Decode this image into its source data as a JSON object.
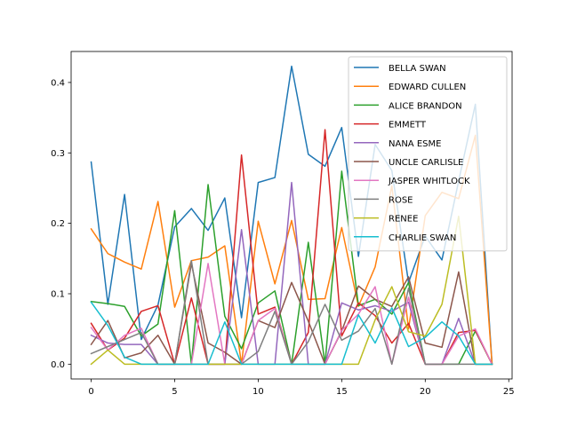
{
  "chart_data": {
    "type": "line",
    "title": "",
    "xlabel": "",
    "ylabel": "",
    "xlim": [
      -1.2,
      25.2
    ],
    "ylim": [
      -0.021,
      0.444
    ],
    "xticks": [
      0,
      5,
      10,
      15,
      20,
      25
    ],
    "xtick_labels": [
      "0",
      "5",
      "10",
      "15",
      "20",
      "25"
    ],
    "yticks": [
      0.0,
      0.1,
      0.2,
      0.3,
      0.4
    ],
    "ytick_labels": [
      "0.0",
      "0.1",
      "0.2",
      "0.3",
      "0.4"
    ],
    "grid": false,
    "legend_position": "upper right",
    "x": [
      0,
      1,
      2,
      3,
      4,
      5,
      6,
      7,
      8,
      9,
      10,
      11,
      12,
      13,
      14,
      15,
      16,
      17,
      18,
      19,
      20,
      21,
      22,
      23,
      24
    ],
    "series": [
      {
        "name": "BELLA SWAN",
        "color": "#1f77b4",
        "values": [
          0.287,
          0.085,
          0.241,
          0.035,
          0.084,
          0.195,
          0.221,
          0.19,
          0.236,
          0.066,
          0.258,
          0.265,
          0.423,
          0.298,
          0.281,
          0.336,
          0.153,
          0.312,
          0.275,
          0.116,
          0.182,
          0.148,
          0.26,
          0.369,
          0.0
        ]
      },
      {
        "name": "EDWARD CULLEN",
        "color": "#ff7f0e",
        "values": [
          0.192,
          0.157,
          0.145,
          0.135,
          0.231,
          0.081,
          0.147,
          0.152,
          0.168,
          0.0,
          0.203,
          0.114,
          0.204,
          0.092,
          0.093,
          0.194,
          0.082,
          0.138,
          0.253,
          0.05,
          0.211,
          0.244,
          0.235,
          0.325,
          0.0
        ]
      },
      {
        "name": "ALICE BRANDON",
        "color": "#2ca02c",
        "values": [
          0.089,
          0.086,
          0.082,
          0.04,
          0.057,
          0.218,
          0.0,
          0.255,
          0.068,
          0.022,
          0.087,
          0.104,
          0.0,
          0.173,
          0.0,
          0.274,
          0.083,
          0.092,
          0.071,
          0.116,
          0.0,
          0.0,
          0.0,
          0.047,
          0.0
        ]
      },
      {
        "name": "EMMETT",
        "color": "#d62728",
        "values": [
          0.058,
          0.02,
          0.037,
          0.075,
          0.083,
          0.0,
          0.094,
          0.0,
          0.0,
          0.297,
          0.071,
          0.081,
          0.0,
          0.045,
          0.333,
          0.04,
          0.087,
          0.069,
          0.03,
          0.058,
          0.0,
          0.0,
          0.045,
          0.048,
          0.0
        ]
      },
      {
        "name": "NANA ESME",
        "color": "#9467bd",
        "values": [
          0.041,
          0.03,
          0.028,
          0.028,
          0.0,
          0.0,
          0.0,
          0.0,
          0.0,
          0.191,
          0.0,
          0.0,
          0.258,
          0.0,
          0.0,
          0.087,
          0.077,
          0.083,
          0.075,
          0.088,
          0.0,
          0.0,
          0.065,
          0.0,
          0.0
        ]
      },
      {
        "name": "UNCLE CARLISLE",
        "color": "#8c564b",
        "values": [
          0.028,
          0.062,
          0.009,
          0.016,
          0.041,
          0.0,
          0.143,
          0.03,
          0.017,
          0.0,
          0.062,
          0.052,
          0.116,
          0.061,
          0.0,
          0.047,
          0.111,
          0.092,
          0.082,
          0.124,
          0.03,
          0.024,
          0.131,
          0.0,
          0.0
        ]
      },
      {
        "name": "JASPER WHITLOCK",
        "color": "#e377c2",
        "values": [
          0.052,
          0.02,
          0.041,
          0.051,
          0.0,
          0.0,
          0.0,
          0.143,
          0.0,
          0.0,
          0.062,
          0.079,
          0.0,
          0.0,
          0.0,
          0.048,
          0.071,
          0.11,
          0.0,
          0.095,
          0.0,
          0.0,
          0.04,
          0.05,
          0.0
        ]
      },
      {
        "name": "ROSE",
        "color": "#7f7f7f",
        "values": [
          0.015,
          0.025,
          0.035,
          0.045,
          0.0,
          0.0,
          0.147,
          0.0,
          0.0,
          0.0,
          0.018,
          0.075,
          0.0,
          0.032,
          0.085,
          0.034,
          0.047,
          0.079,
          0.0,
          0.108,
          0.0,
          0.0,
          0.0,
          0.0,
          0.0
        ]
      },
      {
        "name": "RENEE",
        "color": "#bcbd22",
        "values": [
          0.0,
          0.02,
          0.0,
          0.0,
          0.0,
          0.0,
          0.0,
          0.0,
          0.0,
          0.0,
          0.0,
          0.0,
          0.0,
          0.0,
          0.0,
          0.0,
          0.0,
          0.063,
          0.11,
          0.046,
          0.04,
          0.085,
          0.21,
          0.0,
          0.0
        ]
      },
      {
        "name": "CHARLIE SWAN",
        "color": "#17becf",
        "values": [
          0.088,
          0.055,
          0.01,
          0.0,
          0.0,
          0.0,
          0.0,
          0.0,
          0.06,
          0.0,
          0.0,
          0.0,
          0.0,
          0.0,
          0.0,
          0.0,
          0.07,
          0.03,
          0.08,
          0.025,
          0.038,
          0.06,
          0.04,
          0.0,
          0.0
        ]
      }
    ]
  }
}
